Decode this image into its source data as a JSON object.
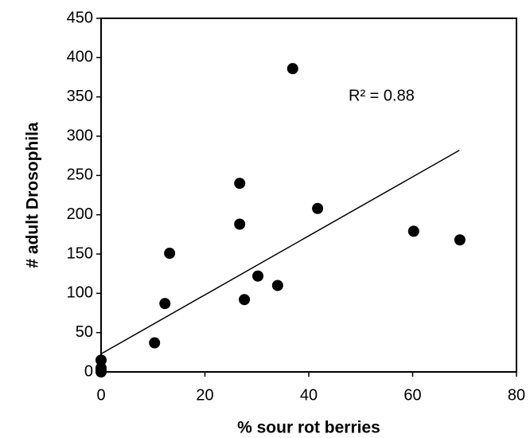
{
  "chart_data": {
    "type": "scatter",
    "x_label": "% sour rot berries",
    "y_label": "# adult Drosophila",
    "annotation": "R² = 0.88",
    "x": [
      0,
      0,
      0,
      0,
      10.3,
      12.3,
      13.2,
      26.7,
      26.7,
      27.6,
      30.2,
      34.0,
      36.9,
      41.7,
      60.2,
      69.1
    ],
    "values": [
      15,
      5,
      2,
      0,
      37,
      87,
      151,
      240,
      188,
      92,
      122,
      110,
      386,
      208,
      179,
      168
    ],
    "color": "#000000",
    "trendline": {
      "x": [
        0,
        69
      ],
      "y": [
        23,
        282
      ]
    },
    "xlim": [
      0,
      80
    ],
    "xticks": [
      0,
      20,
      40,
      60,
      80
    ],
    "ylim": [
      0,
      450
    ],
    "yticks": [
      0,
      50,
      100,
      150,
      200,
      250,
      300,
      350,
      400,
      450
    ]
  }
}
